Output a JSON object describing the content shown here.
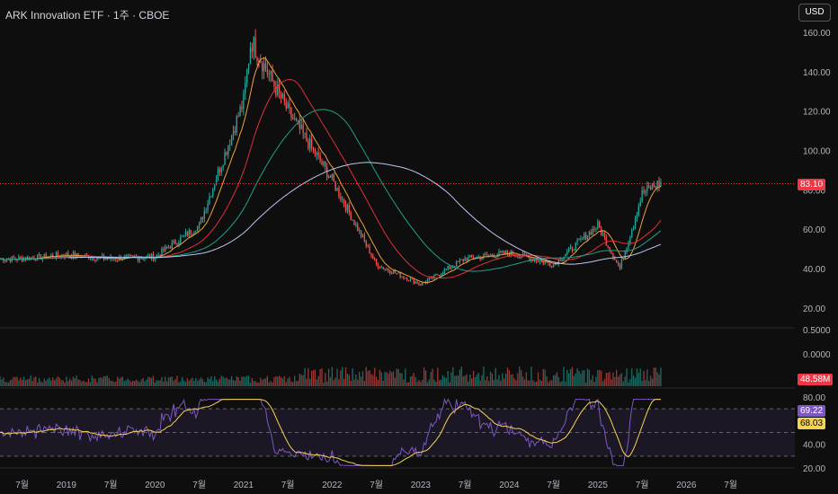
{
  "header": {
    "title": "ARK Innovation ETF · 1주 · CBOE",
    "currency": "USD"
  },
  "price_axis": {
    "ticks": [
      "160.00",
      "140.00",
      "120.00",
      "100.00",
      "80.00",
      "60.00",
      "40.00",
      "20.00"
    ],
    "last_price": "83.10",
    "last_price_color": "#f23645"
  },
  "volume_axis": {
    "ticks": [
      "0.5000",
      "0.0000"
    ],
    "last_volume": "48.58M",
    "color": "#f23645"
  },
  "rsi_axis": {
    "ticks": [
      "80.00",
      "60.00",
      "40.00",
      "20.00"
    ],
    "rsi_value": "69.22",
    "rsi_color": "#7e57c2",
    "ma_value": "68.03",
    "ma_color": "#f7d354"
  },
  "time_axis": {
    "labels": [
      "7월",
      "2019",
      "7월",
      "2020",
      "7월",
      "2021",
      "7월",
      "2022",
      "7월",
      "2023",
      "7월",
      "2024",
      "7월",
      "2025",
      "7월",
      "2026",
      "7월"
    ]
  },
  "colors": {
    "up": "#26a69a",
    "down": "#ef5350",
    "ma_fast": "#f0a13a",
    "ma_mid": "#e0303a",
    "ma_slow": "#1fa08a",
    "ma_long": "#b9c6f0",
    "rsi": "#7e57c2",
    "rsi_ma": "#f7d354"
  },
  "chart_data": {
    "type": "line",
    "title": "ARK Innovation ETF · 1주 · CBOE",
    "x": [
      "2018-07",
      "2019-01",
      "2019-07",
      "2020-01",
      "2020-07",
      "2021-01",
      "2021-02",
      "2021-07",
      "2022-01",
      "2022-07",
      "2023-01",
      "2023-07",
      "2024-01",
      "2024-07",
      "2025-01",
      "2025-04",
      "2025-07",
      "2025-09"
    ],
    "series": [
      {
        "values": [
          45,
          47,
          45,
          46,
          62,
          125,
          156,
          120,
          85,
          42,
          32,
          45,
          48,
          42,
          62,
          40,
          78,
          83.1
        ]
      }
    ],
    "ylim": [
      20,
      160
    ],
    "volume_axis_ticks": [
      0.5,
      0.0
    ],
    "last_volume": "48.58M",
    "rsi": {
      "current": 69.22,
      "ma": 68.03,
      "ylim": [
        20,
        80
      ]
    }
  }
}
